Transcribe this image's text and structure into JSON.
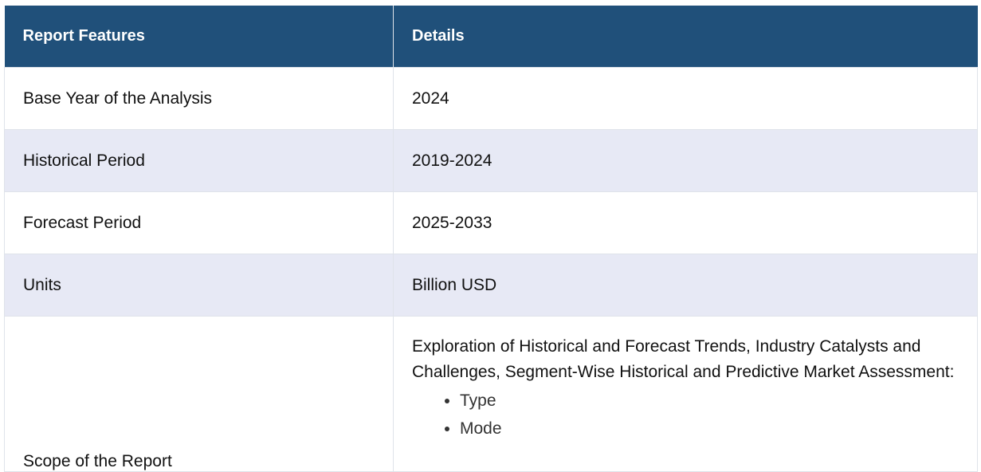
{
  "table": {
    "headers": [
      "Report Features",
      "Details"
    ],
    "rows": [
      {
        "feature": "Base Year of the Analysis",
        "detail": "2024"
      },
      {
        "feature": "Historical Period",
        "detail": "2019-2024"
      },
      {
        "feature": "Forecast Period",
        "detail": "2025-2033"
      },
      {
        "feature": "Units",
        "detail": "Billion USD"
      }
    ],
    "scope": {
      "feature": "Scope of the Report",
      "description": "Exploration of Historical and Forecast Trends, Industry Catalysts and Challenges, Segment-Wise Historical and Predictive Market Assessment:",
      "items": [
        "Type",
        "Mode"
      ]
    }
  },
  "colors": {
    "header_bg": "#20507a",
    "header_text": "#ffffff",
    "row_alt_bg": "#e7e9f5",
    "border": "#dfe3ea"
  }
}
